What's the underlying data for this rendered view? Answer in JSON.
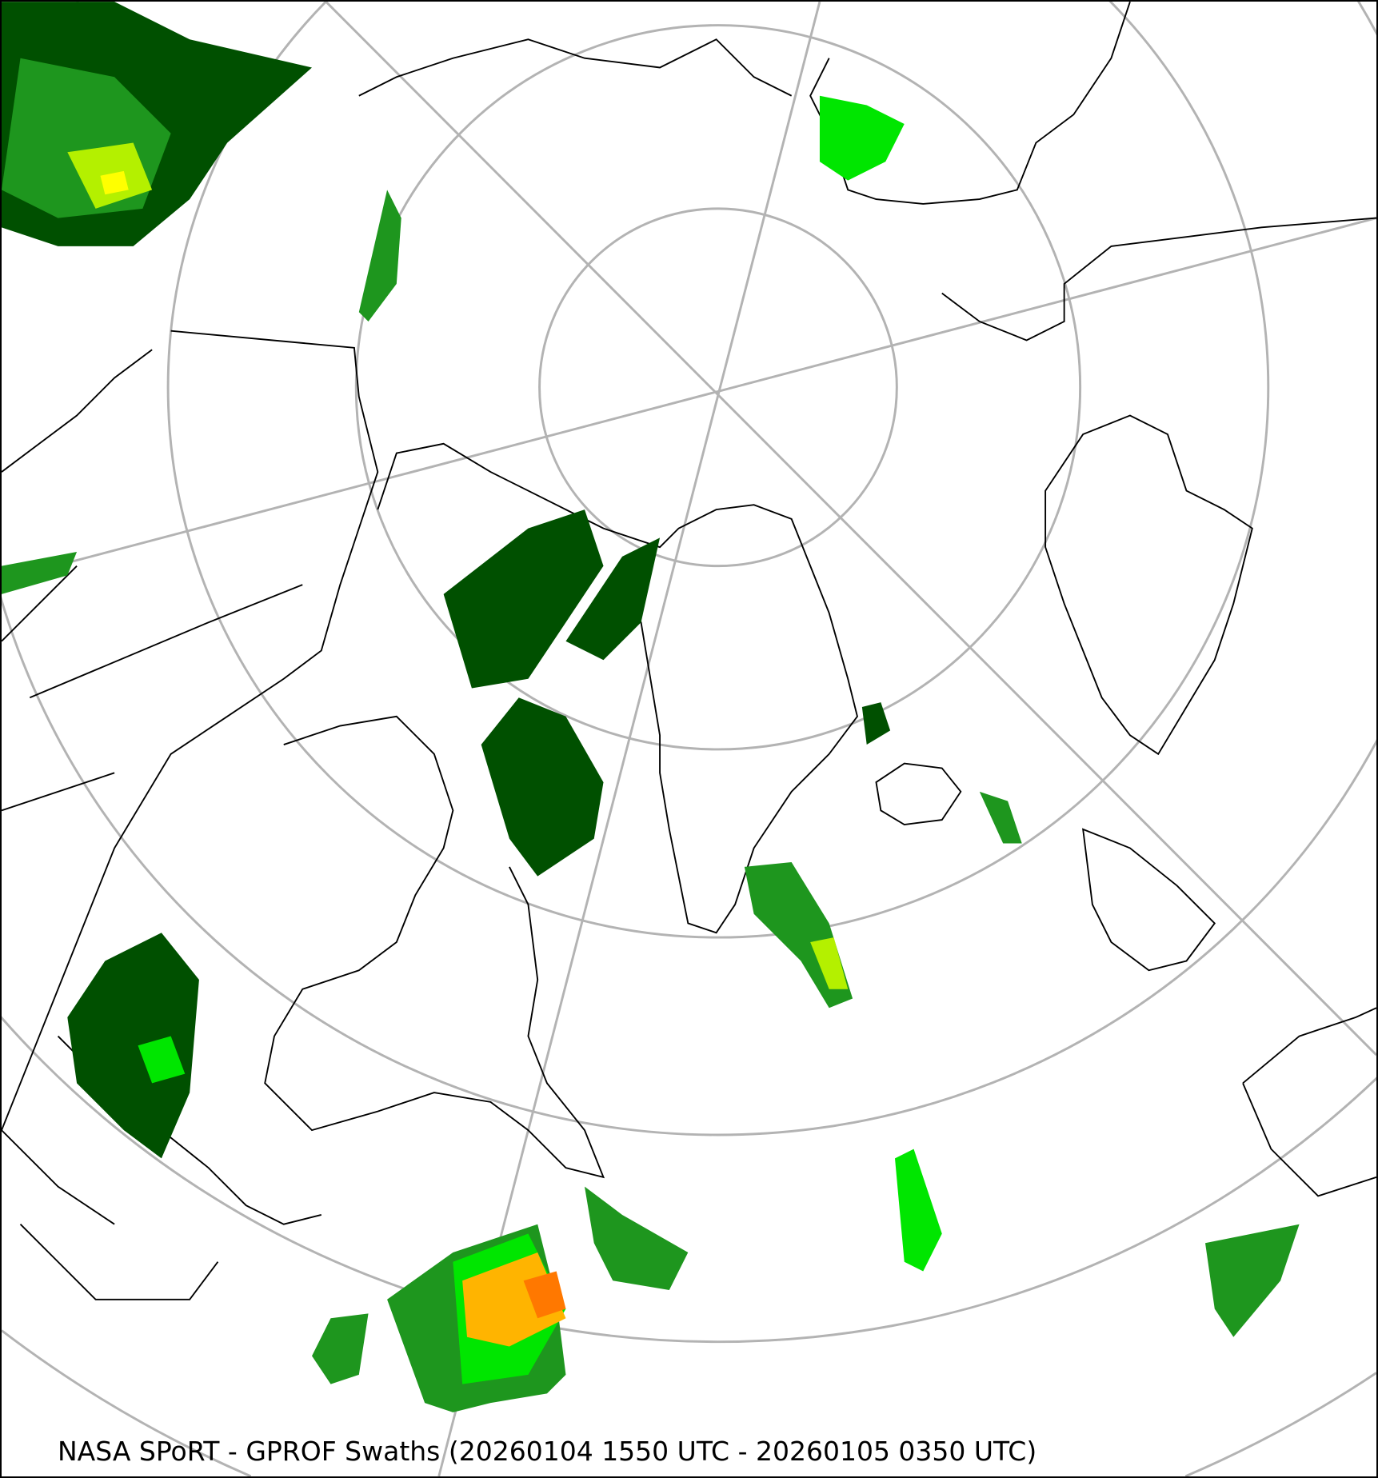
{
  "map": {
    "caption": "NASA SPoRT - GPROF Swaths (20260104 1550 UTC - 20260105 0350 UTC)",
    "projection": "north-polar-stereographic",
    "graticule_color": "#b3b3b3",
    "coastline_color": "#000000",
    "precip_colors": [
      "#005000",
      "#1e961e",
      "#00e600",
      "#b4f000",
      "#ffff00",
      "#ffb400",
      "#ff7800"
    ]
  }
}
